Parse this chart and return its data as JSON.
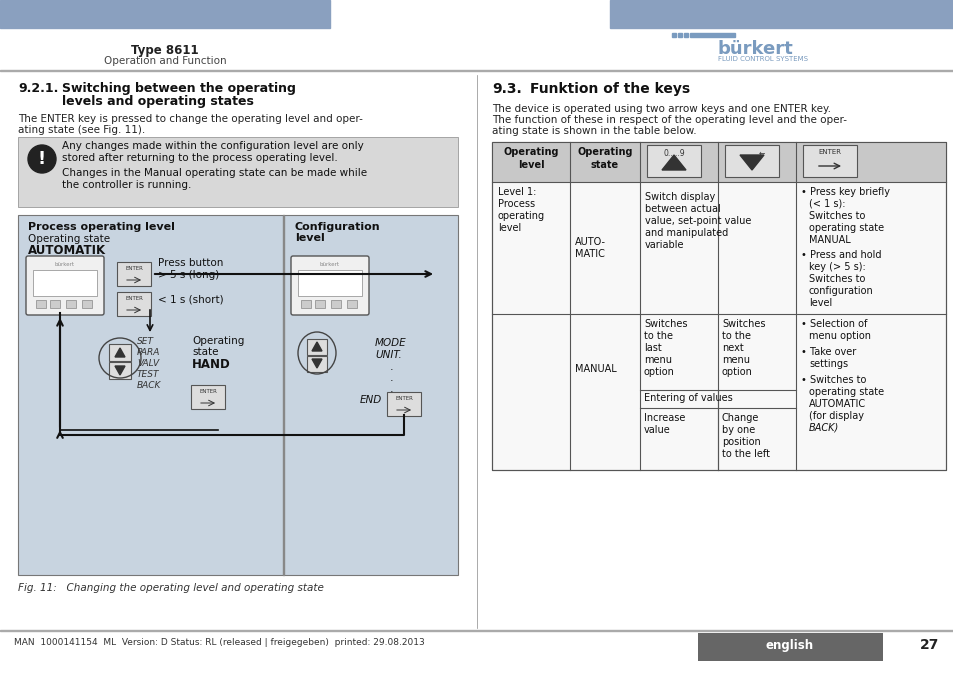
{
  "page_bg": "#ffffff",
  "header_bar_color": "#8aa0bf",
  "header_text_left": "Type 8611",
  "header_subtext_left": "Operation and Function",
  "footer_text": "MAN  1000141154  ML  Version: D Status: RL (released | freigegeben)  printed: 29.08.2013",
  "footer_right_text": "english",
  "footer_page": "27",
  "table_header_bg": "#c8c8c8",
  "table_cell_bg": "#f0f0f0",
  "table_border": "#555555",
  "note_bg": "#d8d8d8",
  "diagram_bg": "#c8d4e0",
  "burkert_blue": "#7a9bbf"
}
